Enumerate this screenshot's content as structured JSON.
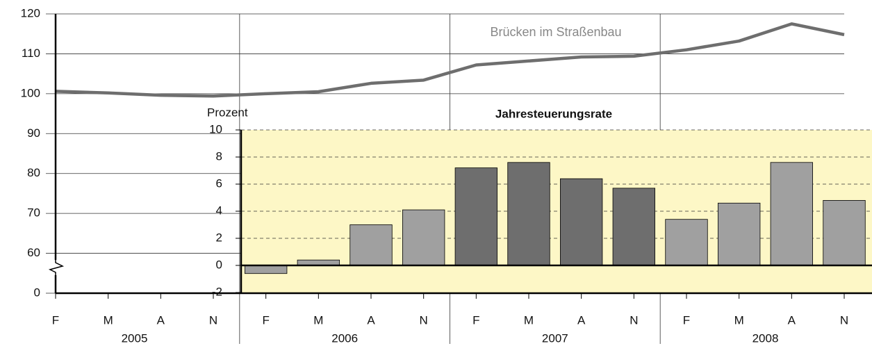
{
  "chart_data": [
    {
      "type": "line",
      "annotation": "Brücken im Straßenbau",
      "categories": [
        "F",
        "M",
        "A",
        "N",
        "F",
        "M",
        "A",
        "N",
        "F",
        "M",
        "A",
        "N",
        "F",
        "M",
        "A",
        "N"
      ],
      "x_groups": [
        "2005",
        "2006",
        "2007",
        "2008"
      ],
      "series": [
        {
          "color": "#6e6e6e",
          "values": [
            100.6,
            100.2,
            99.6,
            99.4,
            100.0,
            100.5,
            102.6,
            103.4,
            107.2,
            108.2,
            109.2,
            109.4,
            111.0,
            113.2,
            117.5,
            114.8
          ]
        }
      ],
      "ylim": [
        0,
        120
      ],
      "yticks": [
        0,
        60,
        70,
        80,
        90,
        100,
        110,
        120
      ],
      "axis_break": [
        0,
        50
      ],
      "grid": true
    },
    {
      "type": "bar",
      "title": "Jahresteuerungsrate",
      "ylabel": "Prozent",
      "values": [
        -0.6,
        0.4,
        3.0,
        4.1,
        7.2,
        7.6,
        6.4,
        5.7,
        3.4,
        4.6,
        7.6,
        4.8
      ],
      "colors": [
        "#a0a0a0",
        "#a0a0a0",
        "#a0a0a0",
        "#a0a0a0",
        "#6e6e6e",
        "#6e6e6e",
        "#6e6e6e",
        "#6e6e6e",
        "#a0a0a0",
        "#a0a0a0",
        "#a0a0a0",
        "#a0a0a0"
      ],
      "background": "#fdf7c6",
      "ylim": [
        -2,
        10
      ],
      "yticks": [
        -2,
        0,
        2,
        4,
        6,
        8,
        10
      ],
      "grid": "dashed"
    }
  ]
}
